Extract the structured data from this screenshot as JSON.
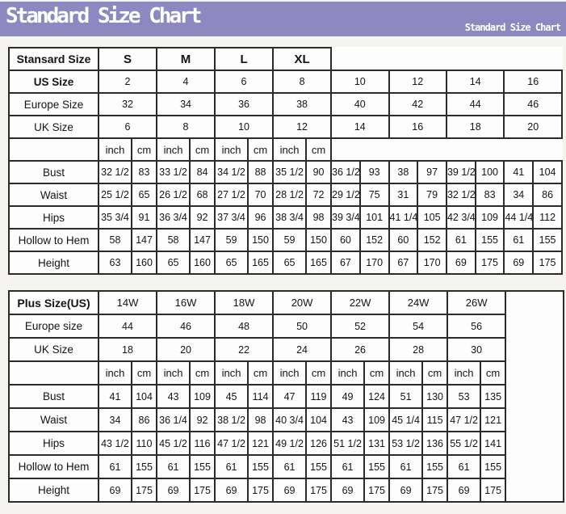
{
  "banner": {
    "title": "Standard Size Chart",
    "watermark": "Standard Size Chart",
    "bg_color": "#8e88c0",
    "text_color": "#ffffff"
  },
  "colors": {
    "table_border": "#2b2b2b",
    "cell_background": "#fdfdfd",
    "page_background": "#f6f4f1"
  },
  "standard_table": {
    "corner_label": "Stansard Size",
    "groups": [
      "S",
      "M",
      "L",
      "XL"
    ],
    "units": [
      "inch",
      "cm"
    ],
    "info_rows": [
      {
        "label": "US Size",
        "bold": true,
        "values": [
          "2",
          "4",
          "6",
          "8",
          "10",
          "12",
          "14",
          "16"
        ]
      },
      {
        "label": "Europe Size",
        "bold": false,
        "values": [
          "32",
          "34",
          "36",
          "38",
          "40",
          "42",
          "44",
          "46"
        ]
      },
      {
        "label": "UK Size",
        "bold": false,
        "values": [
          "6",
          "8",
          "10",
          "12",
          "14",
          "16",
          "18",
          "20"
        ]
      }
    ],
    "measure_rows": [
      {
        "label": "Bust",
        "values": [
          "32 1/2",
          "83",
          "33 1/2",
          "84",
          "34 1/2",
          "88",
          "35 1/2",
          "90",
          "36 1/2",
          "93",
          "38",
          "97",
          "39 1/2",
          "100",
          "41",
          "104"
        ]
      },
      {
        "label": "Waist",
        "values": [
          "25 1/2",
          "65",
          "26 1/2",
          "68",
          "27 1/2",
          "70",
          "28 1/2",
          "72",
          "29 1/2",
          "75",
          "31",
          "79",
          "32 1/2",
          "83",
          "34",
          "86"
        ]
      },
      {
        "label": "Hips",
        "values": [
          "35 3/4",
          "91",
          "36 3/4",
          "92",
          "37 3/4",
          "96",
          "38 3/4",
          "98",
          "39 3/4",
          "101",
          "41 1/4",
          "105",
          "42 3/4",
          "109",
          "44 1/4",
          "112"
        ]
      },
      {
        "label": "Hollow to Hem",
        "values": [
          "58",
          "147",
          "58",
          "147",
          "59",
          "150",
          "59",
          "150",
          "60",
          "152",
          "60",
          "152",
          "61",
          "155",
          "61",
          "155"
        ]
      },
      {
        "label": "Height",
        "values": [
          "63",
          "160",
          "65",
          "160",
          "65",
          "165",
          "65",
          "165",
          "67",
          "170",
          "67",
          "170",
          "69",
          "175",
          "69",
          "175"
        ]
      }
    ]
  },
  "plus_table": {
    "corner_label": "Plus Size(US)",
    "groups": [
      "14W",
      "16W",
      "18W",
      "20W",
      "22W",
      "24W",
      "26W"
    ],
    "units": [
      "inch",
      "cm"
    ],
    "info_rows": [
      {
        "label": "Europe size",
        "bold": false,
        "values": [
          "44",
          "46",
          "48",
          "50",
          "52",
          "54",
          "56"
        ]
      },
      {
        "label": "UK Size",
        "bold": false,
        "values": [
          "18",
          "20",
          "22",
          "24",
          "26",
          "28",
          "30"
        ]
      }
    ],
    "measure_rows": [
      {
        "label": "Bust",
        "values": [
          "41",
          "104",
          "43",
          "109",
          "45",
          "114",
          "47",
          "119",
          "49",
          "124",
          "51",
          "130",
          "53",
          "135"
        ]
      },
      {
        "label": "Waist",
        "values": [
          "34",
          "86",
          "36 1/4",
          "92",
          "38 1/2",
          "98",
          "40 3/4",
          "104",
          "43",
          "109",
          "45 1/4",
          "115",
          "47 1/2",
          "121"
        ]
      },
      {
        "label": "Hips",
        "values": [
          "43 1/2",
          "110",
          "45 1/2",
          "116",
          "47 1/2",
          "121",
          "49 1/2",
          "126",
          "51 1/2",
          "131",
          "53 1/2",
          "136",
          "55 1/2",
          "141"
        ]
      },
      {
        "label": "Hollow to Hem",
        "values": [
          "61",
          "155",
          "61",
          "155",
          "61",
          "155",
          "61",
          "155",
          "61",
          "155",
          "61",
          "155",
          "61",
          "155"
        ]
      },
      {
        "label": "Height",
        "values": [
          "69",
          "175",
          "69",
          "175",
          "69",
          "175",
          "69",
          "175",
          "69",
          "175",
          "69",
          "175",
          "69",
          "175"
        ]
      }
    ]
  }
}
